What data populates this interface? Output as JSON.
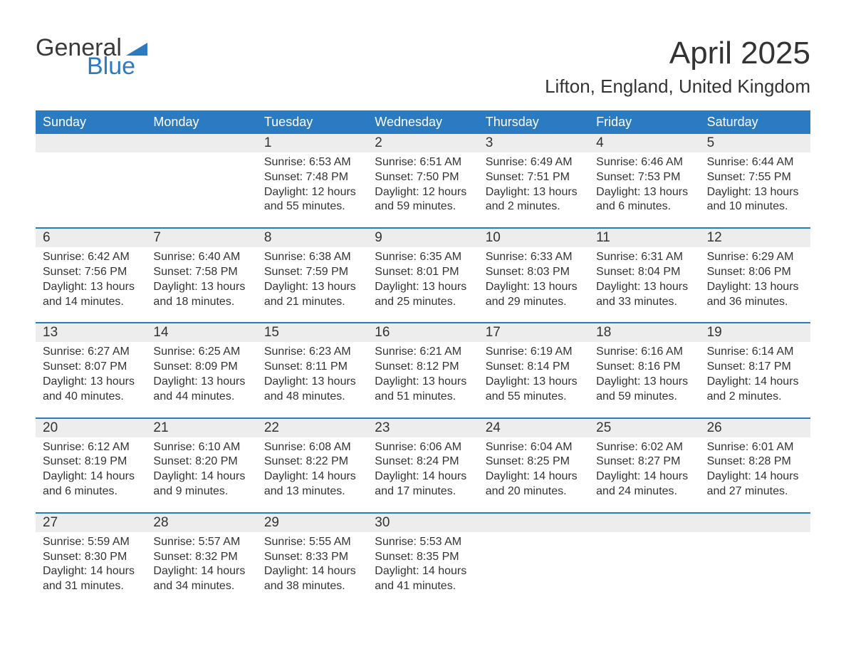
{
  "logo": {
    "word1": "General",
    "word2": "Blue",
    "flag_color": "#2b7bc3",
    "text_color": "#3a3a3a"
  },
  "title": "April 2025",
  "location": "Lifton, England, United Kingdom",
  "colors": {
    "header_bg": "#2b7bc3",
    "header_text": "#ffffff",
    "date_row_bg": "#ededed",
    "body_text": "#333333",
    "week_divider": "#2b7bc3",
    "page_bg": "#ffffff"
  },
  "dayNames": [
    "Sunday",
    "Monday",
    "Tuesday",
    "Wednesday",
    "Thursday",
    "Friday",
    "Saturday"
  ],
  "weeks": [
    {
      "dates": [
        "",
        "",
        "1",
        "2",
        "3",
        "4",
        "5"
      ],
      "cells": [
        null,
        null,
        {
          "sunrise": "6:53 AM",
          "sunset": "7:48 PM",
          "daylight": "12 hours and 55 minutes."
        },
        {
          "sunrise": "6:51 AM",
          "sunset": "7:50 PM",
          "daylight": "12 hours and 59 minutes."
        },
        {
          "sunrise": "6:49 AM",
          "sunset": "7:51 PM",
          "daylight": "13 hours and 2 minutes."
        },
        {
          "sunrise": "6:46 AM",
          "sunset": "7:53 PM",
          "daylight": "13 hours and 6 minutes."
        },
        {
          "sunrise": "6:44 AM",
          "sunset": "7:55 PM",
          "daylight": "13 hours and 10 minutes."
        }
      ]
    },
    {
      "dates": [
        "6",
        "7",
        "8",
        "9",
        "10",
        "11",
        "12"
      ],
      "cells": [
        {
          "sunrise": "6:42 AM",
          "sunset": "7:56 PM",
          "daylight": "13 hours and 14 minutes."
        },
        {
          "sunrise": "6:40 AM",
          "sunset": "7:58 PM",
          "daylight": "13 hours and 18 minutes."
        },
        {
          "sunrise": "6:38 AM",
          "sunset": "7:59 PM",
          "daylight": "13 hours and 21 minutes."
        },
        {
          "sunrise": "6:35 AM",
          "sunset": "8:01 PM",
          "daylight": "13 hours and 25 minutes."
        },
        {
          "sunrise": "6:33 AM",
          "sunset": "8:03 PM",
          "daylight": "13 hours and 29 minutes."
        },
        {
          "sunrise": "6:31 AM",
          "sunset": "8:04 PM",
          "daylight": "13 hours and 33 minutes."
        },
        {
          "sunrise": "6:29 AM",
          "sunset": "8:06 PM",
          "daylight": "13 hours and 36 minutes."
        }
      ]
    },
    {
      "dates": [
        "13",
        "14",
        "15",
        "16",
        "17",
        "18",
        "19"
      ],
      "cells": [
        {
          "sunrise": "6:27 AM",
          "sunset": "8:07 PM",
          "daylight": "13 hours and 40 minutes."
        },
        {
          "sunrise": "6:25 AM",
          "sunset": "8:09 PM",
          "daylight": "13 hours and 44 minutes."
        },
        {
          "sunrise": "6:23 AM",
          "sunset": "8:11 PM",
          "daylight": "13 hours and 48 minutes."
        },
        {
          "sunrise": "6:21 AM",
          "sunset": "8:12 PM",
          "daylight": "13 hours and 51 minutes."
        },
        {
          "sunrise": "6:19 AM",
          "sunset": "8:14 PM",
          "daylight": "13 hours and 55 minutes."
        },
        {
          "sunrise": "6:16 AM",
          "sunset": "8:16 PM",
          "daylight": "13 hours and 59 minutes."
        },
        {
          "sunrise": "6:14 AM",
          "sunset": "8:17 PM",
          "daylight": "14 hours and 2 minutes."
        }
      ]
    },
    {
      "dates": [
        "20",
        "21",
        "22",
        "23",
        "24",
        "25",
        "26"
      ],
      "cells": [
        {
          "sunrise": "6:12 AM",
          "sunset": "8:19 PM",
          "daylight": "14 hours and 6 minutes."
        },
        {
          "sunrise": "6:10 AM",
          "sunset": "8:20 PM",
          "daylight": "14 hours and 9 minutes."
        },
        {
          "sunrise": "6:08 AM",
          "sunset": "8:22 PM",
          "daylight": "14 hours and 13 minutes."
        },
        {
          "sunrise": "6:06 AM",
          "sunset": "8:24 PM",
          "daylight": "14 hours and 17 minutes."
        },
        {
          "sunrise": "6:04 AM",
          "sunset": "8:25 PM",
          "daylight": "14 hours and 20 minutes."
        },
        {
          "sunrise": "6:02 AM",
          "sunset": "8:27 PM",
          "daylight": "14 hours and 24 minutes."
        },
        {
          "sunrise": "6:01 AM",
          "sunset": "8:28 PM",
          "daylight": "14 hours and 27 minutes."
        }
      ]
    },
    {
      "dates": [
        "27",
        "28",
        "29",
        "30",
        "",
        "",
        ""
      ],
      "cells": [
        {
          "sunrise": "5:59 AM",
          "sunset": "8:30 PM",
          "daylight": "14 hours and 31 minutes."
        },
        {
          "sunrise": "5:57 AM",
          "sunset": "8:32 PM",
          "daylight": "14 hours and 34 minutes."
        },
        {
          "sunrise": "5:55 AM",
          "sunset": "8:33 PM",
          "daylight": "14 hours and 38 minutes."
        },
        {
          "sunrise": "5:53 AM",
          "sunset": "8:35 PM",
          "daylight": "14 hours and 41 minutes."
        },
        null,
        null,
        null
      ]
    }
  ],
  "labels": {
    "sunrise": "Sunrise: ",
    "sunset": "Sunset: ",
    "daylight": "Daylight: "
  }
}
